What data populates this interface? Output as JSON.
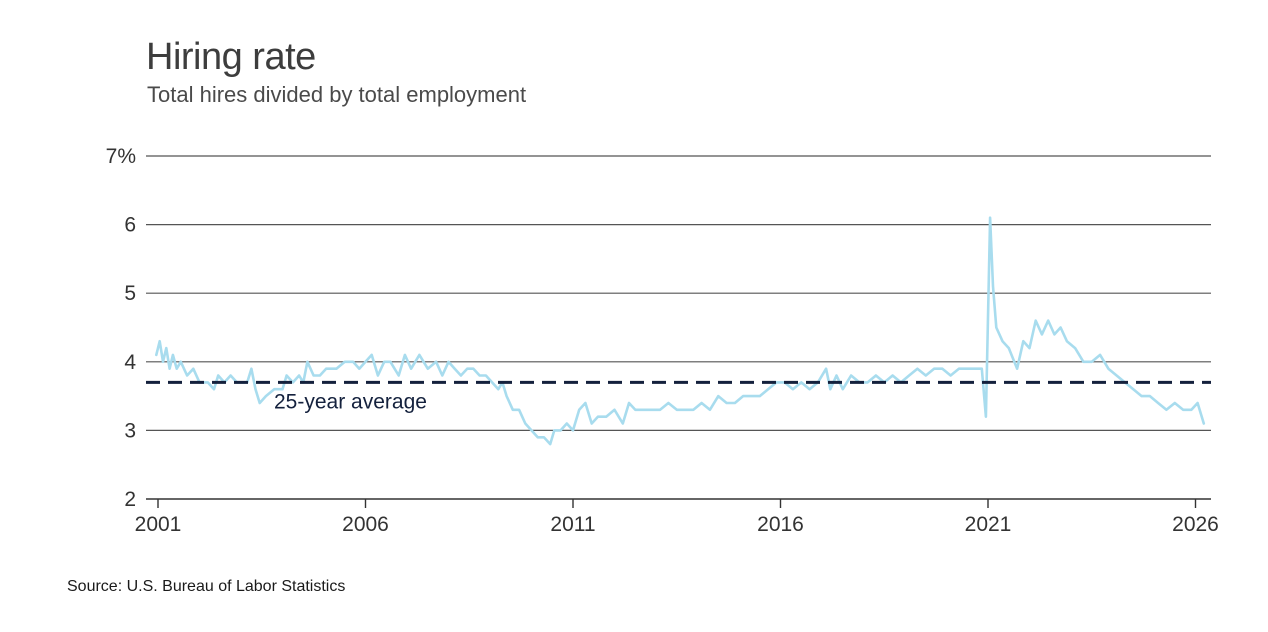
{
  "title": "Hiring rate",
  "subtitle": "Total hires divided by total employment",
  "source": "Source: U.S. Bureau of Labor Statistics",
  "colors": {
    "line": "#a8dcee",
    "average": "#14213d",
    "grid": "#555555"
  },
  "chart_data": {
    "type": "line",
    "title": "Hiring rate",
    "subtitle": "Total hires divided by total employment",
    "ylim": [
      2,
      7
    ],
    "xlim": [
      2001,
      2026.25
    ],
    "y_ticks": [
      2,
      3,
      4,
      5,
      6,
      7
    ],
    "y_tick_labels": [
      "2",
      "3",
      "4",
      "5",
      "6",
      "7%"
    ],
    "x_ticks": [
      2001,
      2006,
      2011,
      2016,
      2021,
      2026
    ],
    "x_tick_labels": [
      "2001",
      "2006",
      "2011",
      "2016",
      "2021",
      "2026"
    ],
    "grid": true,
    "average": {
      "value": 3.7,
      "label": "25-year average"
    },
    "series": [
      {
        "name": "",
        "points": [
          [
            2000.96,
            4.1
          ],
          [
            2001.04,
            4.3
          ],
          [
            2001.12,
            4.0
          ],
          [
            2001.2,
            4.2
          ],
          [
            2001.28,
            3.9
          ],
          [
            2001.36,
            4.1
          ],
          [
            2001.45,
            3.9
          ],
          [
            2001.55,
            4.0
          ],
          [
            2001.7,
            3.8
          ],
          [
            2001.85,
            3.9
          ],
          [
            2002.0,
            3.7
          ],
          [
            2002.2,
            3.7
          ],
          [
            2002.35,
            3.6
          ],
          [
            2002.45,
            3.8
          ],
          [
            2002.6,
            3.7
          ],
          [
            2002.75,
            3.8
          ],
          [
            2002.9,
            3.7
          ],
          [
            2003.0,
            3.7
          ],
          [
            2003.15,
            3.7
          ],
          [
            2003.25,
            3.9
          ],
          [
            2003.35,
            3.6
          ],
          [
            2003.45,
            3.4
          ],
          [
            2003.6,
            3.5
          ],
          [
            2003.8,
            3.6
          ],
          [
            2004.0,
            3.6
          ],
          [
            2004.1,
            3.8
          ],
          [
            2004.25,
            3.7
          ],
          [
            2004.4,
            3.8
          ],
          [
            2004.5,
            3.7
          ],
          [
            2004.6,
            4.0
          ],
          [
            2004.75,
            3.8
          ],
          [
            2004.9,
            3.8
          ],
          [
            2005.05,
            3.9
          ],
          [
            2005.3,
            3.9
          ],
          [
            2005.5,
            4.0
          ],
          [
            2005.7,
            4.0
          ],
          [
            2005.85,
            3.9
          ],
          [
            2006.0,
            4.0
          ],
          [
            2006.15,
            4.1
          ],
          [
            2006.3,
            3.8
          ],
          [
            2006.45,
            4.0
          ],
          [
            2006.6,
            4.0
          ],
          [
            2006.8,
            3.8
          ],
          [
            2006.95,
            4.1
          ],
          [
            2007.1,
            3.9
          ],
          [
            2007.3,
            4.1
          ],
          [
            2007.5,
            3.9
          ],
          [
            2007.7,
            4.0
          ],
          [
            2007.85,
            3.8
          ],
          [
            2008.0,
            4.0
          ],
          [
            2008.15,
            3.9
          ],
          [
            2008.3,
            3.8
          ],
          [
            2008.45,
            3.9
          ],
          [
            2008.6,
            3.9
          ],
          [
            2008.75,
            3.8
          ],
          [
            2008.9,
            3.8
          ],
          [
            2009.05,
            3.7
          ],
          [
            2009.2,
            3.6
          ],
          [
            2009.3,
            3.7
          ],
          [
            2009.4,
            3.5
          ],
          [
            2009.55,
            3.3
          ],
          [
            2009.7,
            3.3
          ],
          [
            2009.85,
            3.1
          ],
          [
            2010.0,
            3.0
          ],
          [
            2010.15,
            2.9
          ],
          [
            2010.3,
            2.9
          ],
          [
            2010.45,
            2.8
          ],
          [
            2010.55,
            3.0
          ],
          [
            2010.7,
            3.0
          ],
          [
            2010.85,
            3.1
          ],
          [
            2011.0,
            3.0
          ],
          [
            2011.15,
            3.3
          ],
          [
            2011.3,
            3.4
          ],
          [
            2011.45,
            3.1
          ],
          [
            2011.6,
            3.2
          ],
          [
            2011.8,
            3.2
          ],
          [
            2012.0,
            3.3
          ],
          [
            2012.2,
            3.1
          ],
          [
            2012.35,
            3.4
          ],
          [
            2012.5,
            3.3
          ],
          [
            2012.7,
            3.3
          ],
          [
            2012.9,
            3.3
          ],
          [
            2013.1,
            3.3
          ],
          [
            2013.3,
            3.4
          ],
          [
            2013.5,
            3.3
          ],
          [
            2013.7,
            3.3
          ],
          [
            2013.9,
            3.3
          ],
          [
            2014.1,
            3.4
          ],
          [
            2014.3,
            3.3
          ],
          [
            2014.5,
            3.5
          ],
          [
            2014.7,
            3.4
          ],
          [
            2014.9,
            3.4
          ],
          [
            2015.1,
            3.5
          ],
          [
            2015.3,
            3.5
          ],
          [
            2015.5,
            3.5
          ],
          [
            2015.7,
            3.6
          ],
          [
            2015.9,
            3.7
          ],
          [
            2016.1,
            3.7
          ],
          [
            2016.3,
            3.6
          ],
          [
            2016.5,
            3.7
          ],
          [
            2016.7,
            3.6
          ],
          [
            2016.9,
            3.7
          ],
          [
            2017.1,
            3.9
          ],
          [
            2017.2,
            3.6
          ],
          [
            2017.35,
            3.8
          ],
          [
            2017.5,
            3.6
          ],
          [
            2017.7,
            3.8
          ],
          [
            2017.9,
            3.7
          ],
          [
            2018.1,
            3.7
          ],
          [
            2018.3,
            3.8
          ],
          [
            2018.5,
            3.7
          ],
          [
            2018.7,
            3.8
          ],
          [
            2018.9,
            3.7
          ],
          [
            2019.1,
            3.8
          ],
          [
            2019.3,
            3.9
          ],
          [
            2019.5,
            3.8
          ],
          [
            2019.7,
            3.9
          ],
          [
            2019.9,
            3.9
          ],
          [
            2020.1,
            3.8
          ],
          [
            2020.3,
            3.9
          ],
          [
            2020.55,
            3.9
          ],
          [
            2020.85,
            3.9
          ],
          [
            2020.95,
            3.2
          ],
          [
            2021.05,
            6.1
          ],
          [
            2021.12,
            5.1
          ],
          [
            2021.2,
            4.5
          ],
          [
            2021.35,
            4.3
          ],
          [
            2021.5,
            4.2
          ],
          [
            2021.7,
            3.9
          ],
          [
            2021.85,
            4.3
          ],
          [
            2022.0,
            4.2
          ],
          [
            2022.15,
            4.6
          ],
          [
            2022.3,
            4.4
          ],
          [
            2022.45,
            4.6
          ],
          [
            2022.6,
            4.4
          ],
          [
            2022.75,
            4.5
          ],
          [
            2022.9,
            4.3
          ],
          [
            2023.1,
            4.2
          ],
          [
            2023.3,
            4.0
          ],
          [
            2023.5,
            4.0
          ],
          [
            2023.7,
            4.1
          ],
          [
            2023.9,
            3.9
          ],
          [
            2024.1,
            3.8
          ],
          [
            2024.3,
            3.7
          ],
          [
            2024.5,
            3.6
          ],
          [
            2024.7,
            3.5
          ],
          [
            2024.9,
            3.5
          ],
          [
            2025.1,
            3.4
          ],
          [
            2025.3,
            3.3
          ],
          [
            2025.5,
            3.4
          ],
          [
            2025.7,
            3.3
          ],
          [
            2025.9,
            3.3
          ],
          [
            2026.05,
            3.4
          ],
          [
            2026.2,
            3.1
          ]
        ]
      }
    ]
  }
}
